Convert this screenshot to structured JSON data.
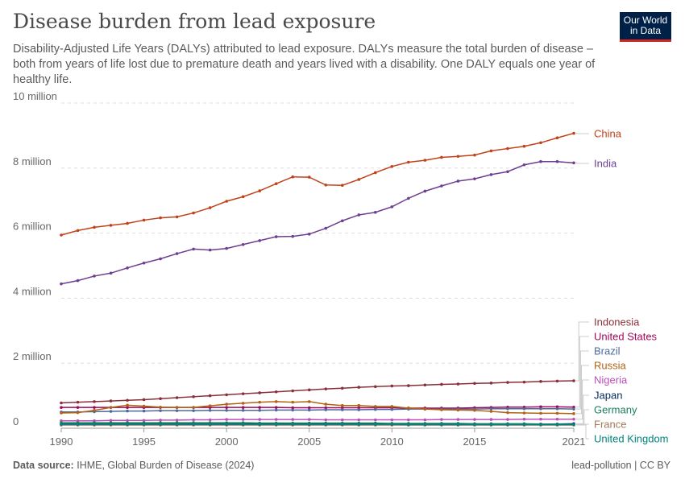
{
  "title": "Disease burden from lead exposure",
  "subtitle": "Disability-Adjusted Life Years (DALYs) attributed to lead exposure. DALYs measure the total burden of disease – both from years of life lost due to premature death and years lived with a disability. One DALY equals one year of healthy life.",
  "logo": {
    "line1": "Our World",
    "line2": "in Data"
  },
  "footer": {
    "source_label": "Data source:",
    "source": "IHME, Global Burden of Disease (2024)",
    "right": "lead-pollution | CC BY"
  },
  "chart_data": {
    "type": "line",
    "title": "Disease burden from lead exposure",
    "xlabel": "",
    "ylabel": "",
    "ylim": [
      0,
      10000000
    ],
    "xlim": [
      1990,
      2021
    ],
    "grid": "horizontal dashed",
    "legend": "right (line-end labels)",
    "y_ticks": [
      {
        "v": 0,
        "label": "0"
      },
      {
        "v": 2000000,
        "label": "2 million"
      },
      {
        "v": 4000000,
        "label": "4 million"
      },
      {
        "v": 6000000,
        "label": "6 million"
      },
      {
        "v": 8000000,
        "label": "8 million"
      },
      {
        "v": 10000000,
        "label": "10 million"
      }
    ],
    "x_ticks": [
      {
        "v": 1990,
        "label": "1990"
      },
      {
        "v": 1995,
        "label": "1995"
      },
      {
        "v": 2000,
        "label": "2000"
      },
      {
        "v": 2005,
        "label": "2005"
      },
      {
        "v": 2010,
        "label": "2010"
      },
      {
        "v": 2015,
        "label": "2015"
      },
      {
        "v": 2021,
        "label": "2021"
      }
    ],
    "x": [
      1990,
      1991,
      1992,
      1993,
      1994,
      1995,
      1996,
      1997,
      1998,
      1999,
      2000,
      2001,
      2002,
      2003,
      2004,
      2005,
      2006,
      2007,
      2008,
      2009,
      2010,
      2011,
      2012,
      2013,
      2014,
      2015,
      2016,
      2017,
      2018,
      2019,
      2020,
      2021
    ],
    "series": [
      {
        "name": "China",
        "color": "#c0421a",
        "values": [
          5940000,
          6080000,
          6180000,
          6240000,
          6300000,
          6400000,
          6470000,
          6500000,
          6620000,
          6780000,
          6980000,
          7120000,
          7300000,
          7520000,
          7730000,
          7720000,
          7480000,
          7470000,
          7650000,
          7860000,
          8050000,
          8180000,
          8240000,
          8330000,
          8360000,
          8400000,
          8530000,
          8600000,
          8670000,
          8780000,
          8930000,
          9070000
        ]
      },
      {
        "name": "India",
        "color": "#6d3e91",
        "values": [
          4440000,
          4540000,
          4680000,
          4770000,
          4930000,
          5080000,
          5210000,
          5370000,
          5510000,
          5480000,
          5530000,
          5650000,
          5770000,
          5890000,
          5900000,
          5970000,
          6150000,
          6380000,
          6560000,
          6640000,
          6810000,
          7070000,
          7290000,
          7450000,
          7600000,
          7670000,
          7800000,
          7890000,
          8100000,
          8200000,
          8200000,
          8160000
        ]
      },
      {
        "name": "Indonesia",
        "color": "#883039",
        "values": [
          780000,
          800000,
          820000,
          840000,
          860000,
          880000,
          910000,
          940000,
          970000,
          1000000,
          1030000,
          1060000,
          1090000,
          1120000,
          1150000,
          1180000,
          1210000,
          1230000,
          1260000,
          1280000,
          1300000,
          1310000,
          1330000,
          1350000,
          1360000,
          1380000,
          1390000,
          1410000,
          1420000,
          1440000,
          1450000,
          1460000
        ]
      },
      {
        "name": "United States",
        "color": "#a2065a",
        "values": [
          640000,
          640000,
          640000,
          640000,
          640000,
          640000,
          640000,
          640000,
          640000,
          640000,
          640000,
          640000,
          640000,
          640000,
          630000,
          630000,
          630000,
          630000,
          630000,
          630000,
          630000,
          620000,
          620000,
          620000,
          620000,
          630000,
          640000,
          650000,
          650000,
          660000,
          660000,
          650000
        ]
      },
      {
        "name": "Brazil",
        "color": "#4c6a9c",
        "values": [
          500000,
          500000,
          510000,
          520000,
          530000,
          530000,
          540000,
          540000,
          540000,
          550000,
          550000,
          550000,
          550000,
          560000,
          560000,
          560000,
          570000,
          570000,
          570000,
          580000,
          580000,
          590000,
          590000,
          590000,
          590000,
          590000,
          600000,
          600000,
          600000,
          600000,
          600000,
          590000
        ]
      },
      {
        "name": "Russia",
        "color": "#b16214",
        "values": [
          470000,
          480000,
          550000,
          640000,
          710000,
          680000,
          650000,
          640000,
          640000,
          690000,
          740000,
          770000,
          800000,
          820000,
          800000,
          820000,
          740000,
          700000,
          700000,
          670000,
          670000,
          620000,
          590000,
          570000,
          560000,
          550000,
          520000,
          480000,
          470000,
          460000,
          460000,
          450000
        ]
      },
      {
        "name": "Nigeria",
        "color": "#bd4eb9",
        "values": [
          230000,
          230000,
          230000,
          240000,
          240000,
          240000,
          250000,
          250000,
          260000,
          260000,
          270000,
          270000,
          270000,
          270000,
          270000,
          270000,
          260000,
          260000,
          260000,
          260000,
          260000,
          260000,
          260000,
          270000,
          270000,
          270000,
          270000,
          270000,
          280000,
          280000,
          280000,
          280000
        ]
      },
      {
        "name": "Japan",
        "color": "#00295b",
        "values": [
          130000,
          130000,
          130000,
          130000,
          130000,
          130000,
          130000,
          130000,
          130000,
          130000,
          130000,
          130000,
          130000,
          130000,
          130000,
          130000,
          130000,
          130000,
          130000,
          130000,
          130000,
          130000,
          130000,
          130000,
          130000,
          130000,
          130000,
          130000,
          130000,
          130000,
          130000,
          140000
        ]
      },
      {
        "name": "Germany",
        "color": "#18805c",
        "values": [
          170000,
          170000,
          170000,
          170000,
          170000,
          170000,
          170000,
          170000,
          170000,
          170000,
          170000,
          170000,
          160000,
          160000,
          160000,
          160000,
          160000,
          160000,
          160000,
          160000,
          150000,
          150000,
          150000,
          150000,
          150000,
          140000,
          140000,
          140000,
          140000,
          130000,
          130000,
          120000
        ]
      },
      {
        "name": "France",
        "color": "#a2785a",
        "values": [
          100000,
          100000,
          100000,
          100000,
          100000,
          100000,
          100000,
          100000,
          100000,
          100000,
          100000,
          100000,
          100000,
          100000,
          100000,
          100000,
          100000,
          100000,
          100000,
          100000,
          100000,
          100000,
          100000,
          100000,
          100000,
          100000,
          100000,
          100000,
          100000,
          100000,
          100000,
          100000
        ]
      },
      {
        "name": "United Kingdom",
        "color": "#00847e",
        "values": [
          120000,
          120000,
          120000,
          120000,
          120000,
          120000,
          120000,
          120000,
          120000,
          120000,
          120000,
          120000,
          120000,
          120000,
          120000,
          120000,
          120000,
          120000,
          120000,
          120000,
          120000,
          110000,
          110000,
          110000,
          110000,
          110000,
          110000,
          110000,
          110000,
          110000,
          110000,
          110000
        ]
      }
    ]
  }
}
